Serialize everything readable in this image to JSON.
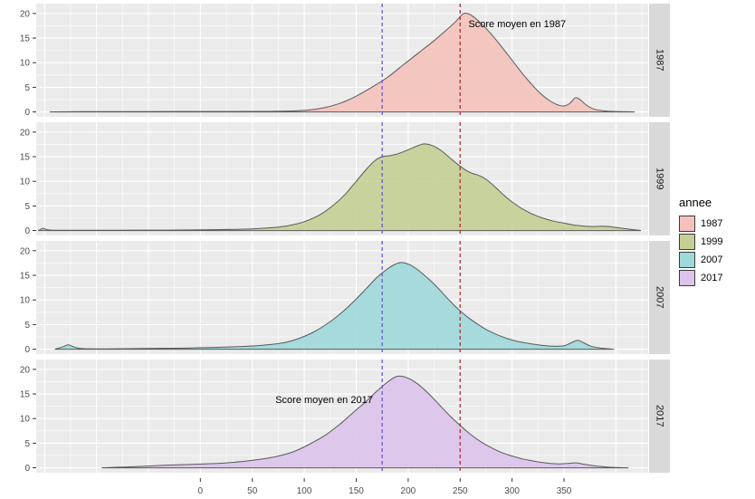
{
  "legend": {
    "title": "annee",
    "items": [
      {
        "label": "1987",
        "color": "#F4C2BA"
      },
      {
        "label": "1999",
        "color": "#C4CF94"
      },
      {
        "label": "2007",
        "color": "#9ED8DA"
      },
      {
        "label": "2017",
        "color": "#DCC3EB"
      }
    ]
  },
  "chart_data": {
    "type": "area",
    "title": "",
    "xlabel": "",
    "ylabel": "",
    "xlim": [
      -158,
      431
    ],
    "ylim": [
      -1,
      22
    ],
    "x_major_ticks": [
      0,
      50,
      100,
      150,
      200,
      250,
      300,
      350
    ],
    "y_major_ticks": [
      0,
      5,
      10,
      15,
      20
    ],
    "y_minor_ticks": [
      2.5,
      7.5,
      12.5,
      17.5
    ],
    "grid": true,
    "panel_bg": "#EBEBEB",
    "grid_color": "#FFFFFF",
    "vlines": [
      {
        "x": 250,
        "color": "#B03030",
        "style": "dashed"
      },
      {
        "x": 175,
        "color": "#6A5ACD",
        "style": "dashed"
      }
    ],
    "annotations": [
      {
        "panel": 0,
        "text": "Score moyen en 1987",
        "x": 258,
        "y": 17.2,
        "anchor": "start"
      },
      {
        "panel": 3,
        "text": "Score moyen en 2017",
        "x": 166,
        "y": 13.2,
        "anchor": "end"
      }
    ],
    "facets": [
      {
        "label": "1987",
        "fill": "#F4C2BA",
        "stroke": "#5a5a5a",
        "points": [
          [
            -145,
            0
          ],
          [
            -120,
            0.04
          ],
          [
            -90,
            0.05
          ],
          [
            -60,
            0.06
          ],
          [
            0,
            0.08
          ],
          [
            60,
            0.1
          ],
          [
            90,
            0.2
          ],
          [
            105,
            0.4
          ],
          [
            120,
            0.9
          ],
          [
            135,
            1.8
          ],
          [
            150,
            3.2
          ],
          [
            165,
            5
          ],
          [
            180,
            7
          ],
          [
            195,
            9.5
          ],
          [
            210,
            12
          ],
          [
            225,
            14.5
          ],
          [
            235,
            16.3
          ],
          [
            245,
            18.2
          ],
          [
            252,
            19.8
          ],
          [
            257,
            20
          ],
          [
            263,
            19.3
          ],
          [
            270,
            18
          ],
          [
            280,
            15.8
          ],
          [
            290,
            13.2
          ],
          [
            300,
            10.5
          ],
          [
            310,
            7.8
          ],
          [
            318,
            5.8
          ],
          [
            326,
            4
          ],
          [
            334,
            2.6
          ],
          [
            342,
            1.6
          ],
          [
            350,
            1.2
          ],
          [
            356,
            1.8
          ],
          [
            361,
            2.9
          ],
          [
            366,
            2.4
          ],
          [
            372,
            1.3
          ],
          [
            380,
            0.5
          ],
          [
            392,
            0.15
          ],
          [
            405,
            0.05
          ],
          [
            418,
            0
          ]
        ]
      },
      {
        "label": "1999",
        "fill": "#C4CF94",
        "stroke": "#5a5a5a",
        "points": [
          [
            -156,
            0
          ],
          [
            -151,
            0.45
          ],
          [
            -145,
            0.1
          ],
          [
            -120,
            0.05
          ],
          [
            -60,
            0.08
          ],
          [
            -20,
            0.1
          ],
          [
            20,
            0.2
          ],
          [
            50,
            0.35
          ],
          [
            70,
            0.6
          ],
          [
            85,
            1
          ],
          [
            100,
            1.8
          ],
          [
            115,
            3.2
          ],
          [
            130,
            5.5
          ],
          [
            140,
            7.5
          ],
          [
            150,
            10
          ],
          [
            160,
            12.5
          ],
          [
            168,
            14.2
          ],
          [
            175,
            15
          ],
          [
            182,
            15.2
          ],
          [
            190,
            15.6
          ],
          [
            200,
            16.4
          ],
          [
            210,
            17.3
          ],
          [
            216,
            17.6
          ],
          [
            224,
            17.2
          ],
          [
            232,
            16.2
          ],
          [
            240,
            14.8
          ],
          [
            248,
            13.4
          ],
          [
            256,
            12.2
          ],
          [
            262,
            11.6
          ],
          [
            268,
            11.2
          ],
          [
            275,
            10.4
          ],
          [
            283,
            9
          ],
          [
            292,
            7.2
          ],
          [
            300,
            5.8
          ],
          [
            310,
            4.4
          ],
          [
            320,
            3.3
          ],
          [
            330,
            2.5
          ],
          [
            340,
            1.9
          ],
          [
            350,
            1.5
          ],
          [
            360,
            1.1
          ],
          [
            370,
            0.9
          ],
          [
            378,
            0.8
          ],
          [
            386,
            0.9
          ],
          [
            394,
            0.8
          ],
          [
            404,
            0.5
          ],
          [
            414,
            0.25
          ],
          [
            424,
            0
          ]
        ]
      },
      {
        "label": "2007",
        "fill": "#9ED8DA",
        "stroke": "#5a5a5a",
        "points": [
          [
            -140,
            0
          ],
          [
            -132,
            0.5
          ],
          [
            -127,
            0.9
          ],
          [
            -121,
            0.4
          ],
          [
            -112,
            0.1
          ],
          [
            -80,
            0.08
          ],
          [
            -50,
            0.15
          ],
          [
            -20,
            0.2
          ],
          [
            0,
            0.3
          ],
          [
            20,
            0.4
          ],
          [
            40,
            0.55
          ],
          [
            60,
            0.8
          ],
          [
            80,
            1.3
          ],
          [
            95,
            2.2
          ],
          [
            110,
            3.6
          ],
          [
            125,
            5.6
          ],
          [
            138,
            7.8
          ],
          [
            150,
            10.2
          ],
          [
            160,
            12.4
          ],
          [
            170,
            14.6
          ],
          [
            180,
            16.3
          ],
          [
            188,
            17.3
          ],
          [
            194,
            17.6
          ],
          [
            202,
            17.1
          ],
          [
            210,
            16
          ],
          [
            218,
            14.6
          ],
          [
            226,
            13
          ],
          [
            234,
            11.2
          ],
          [
            242,
            9.4
          ],
          [
            250,
            7.8
          ],
          [
            258,
            6.4
          ],
          [
            266,
            5.2
          ],
          [
            275,
            4
          ],
          [
            285,
            3
          ],
          [
            295,
            2.2
          ],
          [
            305,
            1.6
          ],
          [
            315,
            1.2
          ],
          [
            328,
            0.8
          ],
          [
            340,
            0.6
          ],
          [
            350,
            0.7
          ],
          [
            357,
            1.3
          ],
          [
            363,
            1.8
          ],
          [
            369,
            1.3
          ],
          [
            376,
            0.6
          ],
          [
            386,
            0.2
          ],
          [
            398,
            0
          ]
        ]
      },
      {
        "label": "2017",
        "fill": "#DCC3EB",
        "stroke": "#5a5a5a",
        "points": [
          [
            -95,
            0
          ],
          [
            -75,
            0.15
          ],
          [
            -55,
            0.3
          ],
          [
            -35,
            0.5
          ],
          [
            -15,
            0.65
          ],
          [
            5,
            0.8
          ],
          [
            25,
            1
          ],
          [
            45,
            1.4
          ],
          [
            60,
            1.8
          ],
          [
            75,
            2.4
          ],
          [
            90,
            3.3
          ],
          [
            105,
            4.8
          ],
          [
            120,
            6.6
          ],
          [
            135,
            9
          ],
          [
            148,
            11.4
          ],
          [
            160,
            13.6
          ],
          [
            170,
            15.6
          ],
          [
            180,
            17.4
          ],
          [
            188,
            18.5
          ],
          [
            194,
            18.6
          ],
          [
            202,
            18
          ],
          [
            210,
            16.9
          ],
          [
            220,
            15
          ],
          [
            230,
            12.8
          ],
          [
            240,
            10.6
          ],
          [
            250,
            8.6
          ],
          [
            260,
            6.8
          ],
          [
            270,
            5.3
          ],
          [
            280,
            4.1
          ],
          [
            290,
            3.1
          ],
          [
            300,
            2.4
          ],
          [
            310,
            1.8
          ],
          [
            320,
            1.4
          ],
          [
            332,
            1
          ],
          [
            344,
            0.8
          ],
          [
            354,
            0.9
          ],
          [
            362,
            1
          ],
          [
            370,
            0.7
          ],
          [
            382,
            0.35
          ],
          [
            396,
            0.1
          ],
          [
            412,
            0
          ]
        ]
      }
    ]
  }
}
